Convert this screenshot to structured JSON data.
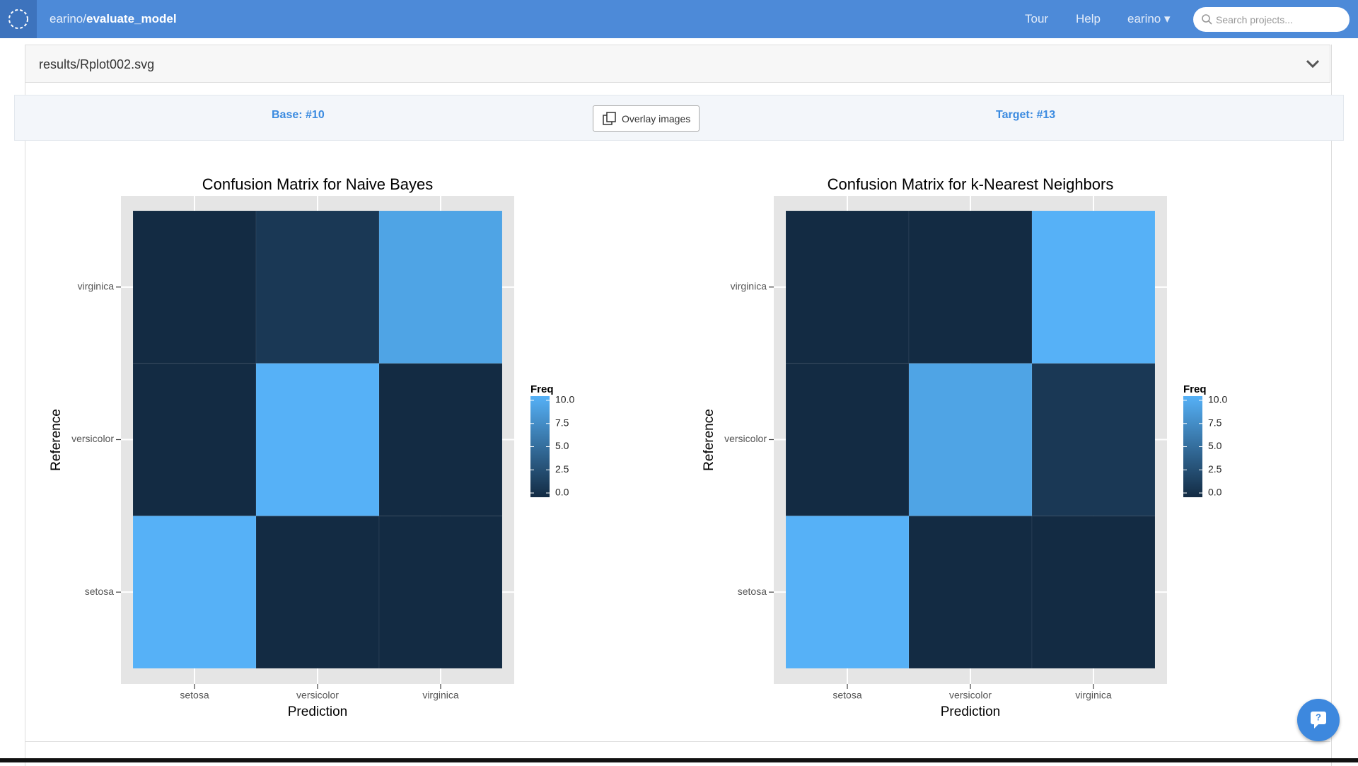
{
  "nav": {
    "owner": "earino/",
    "repo": "evaluate_model",
    "links": [
      "Tour",
      "Help"
    ],
    "user": "earino",
    "search_placeholder": "Search projects..."
  },
  "file": {
    "path": "results/Rplot002.svg"
  },
  "compare": {
    "base": "Base: #10",
    "overlay": "Overlay images",
    "target": "Target: #13"
  },
  "chart_data": [
    {
      "type": "heatmap",
      "title": "Confusion Matrix for Naive Bayes",
      "x_label": "Prediction",
      "y_label": "Reference",
      "x_categories": [
        "setosa",
        "versicolor",
        "virginica"
      ],
      "y_categories": [
        "setosa",
        "versicolor",
        "virginica"
      ],
      "values": [
        [
          10,
          0,
          0
        ],
        [
          0,
          10,
          0
        ],
        [
          0,
          1,
          9
        ]
      ],
      "legend_title": "Freq",
      "zlim": [
        0,
        10
      ],
      "zticks": [
        {
          "value": 0,
          "label": "0.0"
        },
        {
          "value": 2.5,
          "label": "2.5"
        },
        {
          "value": 5,
          "label": "5.0"
        },
        {
          "value": 7.5,
          "label": "7.5"
        },
        {
          "value": 10,
          "label": "10.0"
        }
      ],
      "low_color": "#132b43",
      "high_color": "#56b1f7"
    },
    {
      "type": "heatmap",
      "title": "Confusion Matrix for k-Nearest Neighbors",
      "x_label": "Prediction",
      "y_label": "Reference",
      "x_categories": [
        "setosa",
        "versicolor",
        "virginica"
      ],
      "y_categories": [
        "setosa",
        "versicolor",
        "virginica"
      ],
      "values": [
        [
          10,
          0,
          0
        ],
        [
          0,
          9,
          1
        ],
        [
          0,
          0,
          10
        ]
      ],
      "legend_title": "Freq",
      "zlim": [
        0,
        10
      ],
      "zticks": [
        {
          "value": 0,
          "label": "0.0"
        },
        {
          "value": 2.5,
          "label": "2.5"
        },
        {
          "value": 5,
          "label": "5.0"
        },
        {
          "value": 7.5,
          "label": "7.5"
        },
        {
          "value": 10,
          "label": "10.0"
        }
      ],
      "low_color": "#132b43",
      "high_color": "#56b1f7"
    }
  ]
}
